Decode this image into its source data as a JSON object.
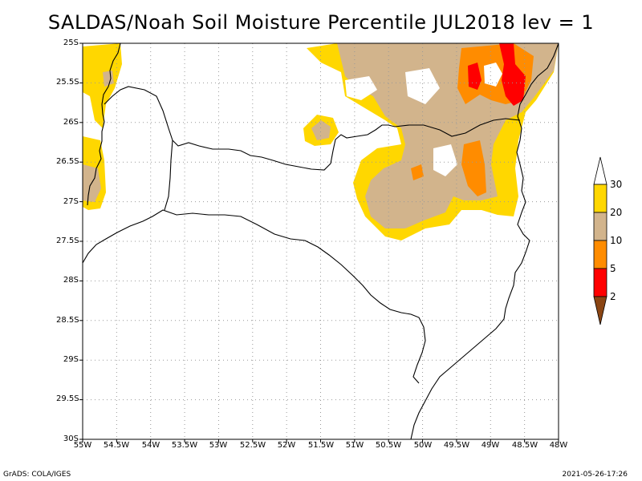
{
  "title": "SALDAS/Noah Soil Moisture Percentile JUL2018 lev = 1",
  "axes": {
    "lat_labels": [
      "25S",
      "25.5S",
      "26S",
      "26.5S",
      "27S",
      "27.5S",
      "28S",
      "28.5S",
      "29S",
      "29.5S",
      "30S"
    ],
    "lon_labels": [
      "55W",
      "54.5W",
      "54W",
      "53.5W",
      "53W",
      "52.5W",
      "52W",
      "51.5W",
      "51W",
      "50.5W",
      "50W",
      "49.5W",
      "49W",
      "48.5W",
      "48W"
    ]
  },
  "legend": {
    "labels": [
      "30",
      "20",
      "10",
      "5",
      "2"
    ],
    "colors": {
      "c20_30": "#ffd700",
      "c10_20": "#d2b48c",
      "c5_10": "#ff8c00",
      "c2_5": "#ff0000",
      "c0_2": "#8b4513",
      "above": "#ffffff"
    }
  },
  "footer": {
    "left": "GrADS: COLA/IGES",
    "right": "2021-05-26-17:26"
  }
}
